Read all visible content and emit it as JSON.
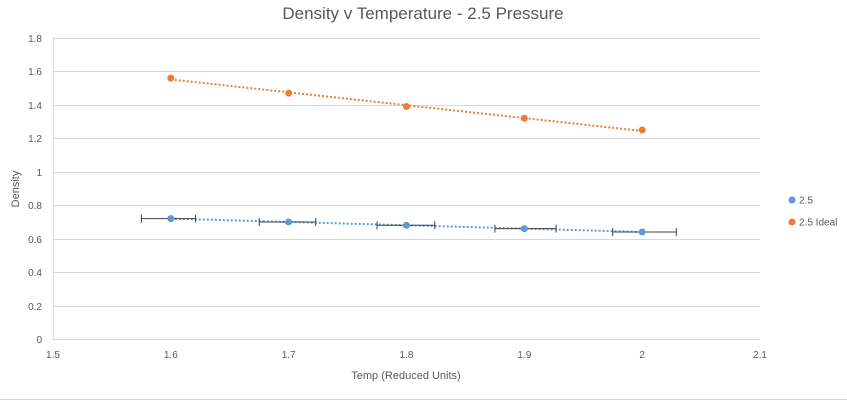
{
  "chart_data": {
    "type": "scatter",
    "title": "Density v Temperature - 2.5 Pressure",
    "xlabel": "Temp (Reduced Units)",
    "ylabel": "Density",
    "xlim": [
      1.5,
      2.1
    ],
    "ylim": [
      0,
      1.8
    ],
    "x_ticks": [
      "1.5",
      "1.6",
      "1.7",
      "1.8",
      "1.9",
      "2",
      "2.1"
    ],
    "y_ticks": [
      "0",
      "0.2",
      "0.4",
      "0.6",
      "0.8",
      "1",
      "1.2",
      "1.4",
      "1.6",
      "1.8"
    ],
    "grid": "horizontal",
    "legend_position": "right",
    "series": [
      {
        "name": "2.5",
        "color": "#5b9bd5",
        "x": [
          1.6,
          1.7,
          1.8,
          1.9,
          2.0
        ],
        "y": [
          0.72,
          0.7,
          0.68,
          0.66,
          0.64
        ],
        "x_error_low": [
          1.575,
          1.675,
          1.775,
          1.875,
          1.975
        ],
        "x_error_high": [
          1.621,
          1.723,
          1.824,
          1.927,
          2.029
        ],
        "trendline": "linear-dotted"
      },
      {
        "name": "2.5 Ideal",
        "color": "#ed7d31",
        "x": [
          1.6,
          1.7,
          1.8,
          1.9,
          2.0
        ],
        "y": [
          1.56,
          1.47,
          1.39,
          1.32,
          1.25
        ],
        "trendline": "linear-dotted"
      }
    ]
  },
  "colors": {
    "gridline": "#d9d9d9",
    "text": "#595959",
    "errorbar": "#404040"
  }
}
